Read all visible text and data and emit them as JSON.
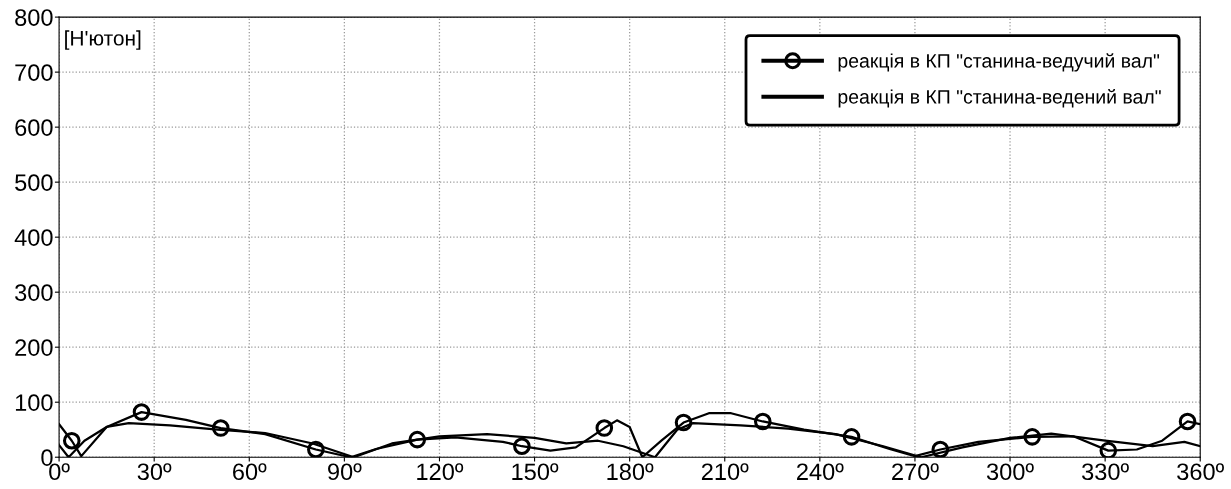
{
  "chart_data": {
    "type": "line",
    "ylabel": "[Н'ютон]",
    "xlim": [
      0,
      360
    ],
    "ylim": [
      0,
      800
    ],
    "xticks": [
      {
        "value": 0,
        "label": "0º"
      },
      {
        "value": 30,
        "label": "30º"
      },
      {
        "value": 60,
        "label": "60º"
      },
      {
        "value": 90,
        "label": "90º"
      },
      {
        "value": 120,
        "label": "120º"
      },
      {
        "value": 150,
        "label": "150º"
      },
      {
        "value": 180,
        "label": "180º"
      },
      {
        "value": 210,
        "label": "210º"
      },
      {
        "value": 240,
        "label": "240º"
      },
      {
        "value": 270,
        "label": "270º"
      },
      {
        "value": 300,
        "label": "300º"
      },
      {
        "value": 330,
        "label": "330º"
      },
      {
        "value": 360,
        "label": "360º"
      }
    ],
    "yticks": [
      0,
      100,
      200,
      300,
      400,
      500,
      600,
      700,
      800
    ],
    "grid": true,
    "legend": "top right",
    "line_style": "solid",
    "series": [
      {
        "name": "реакція в КП \"станина-ведучий вал\"",
        "color": "#000000",
        "x": [
          0,
          4,
          7,
          15,
          26,
          40,
          51,
          65,
          81,
          92,
          100,
          113,
          125,
          140,
          146,
          155,
          163,
          172,
          176,
          180,
          184,
          190,
          197,
          205,
          212,
          222,
          235,
          250,
          262,
          270,
          278,
          290,
          307,
          320,
          331,
          340,
          348,
          356,
          360
        ],
        "values": [
          60,
          30,
          2,
          55,
          82,
          68,
          53,
          42,
          14,
          0,
          15,
          32,
          36,
          28,
          20,
          12,
          18,
          53,
          67,
          55,
          0,
          30,
          63,
          80,
          80,
          65,
          50,
          37,
          15,
          2,
          14,
          28,
          37,
          38,
          12,
          14,
          30,
          65,
          60
        ]
      },
      {
        "type": "scatter",
        "color": "#000000",
        "marker": "circle",
        "x": [
          4,
          26,
          51,
          81,
          113,
          146,
          172,
          197,
          222,
          250,
          278,
          307,
          331,
          356
        ],
        "values": [
          30,
          82,
          53,
          14,
          32,
          20,
          53,
          63,
          65,
          37,
          14,
          37,
          12,
          65
        ]
      },
      {
        "name": "реакція в КП \"станина-ведений вал\"",
        "color": "#000000",
        "marker": "none",
        "x": [
          0,
          3,
          8,
          15,
          22,
          35,
          50,
          65,
          80,
          93,
          105,
          120,
          135,
          150,
          160,
          170,
          178,
          188,
          195,
          200,
          215,
          230,
          245,
          260,
          272,
          285,
          300,
          313,
          330,
          345,
          355,
          360
        ],
        "values": [
          22,
          0,
          30,
          55,
          62,
          58,
          50,
          44,
          25,
          0,
          25,
          38,
          42,
          35,
          25,
          30,
          20,
          0,
          50,
          62,
          58,
          52,
          42,
          20,
          0,
          18,
          35,
          43,
          30,
          20,
          28,
          20
        ]
      }
    ]
  }
}
